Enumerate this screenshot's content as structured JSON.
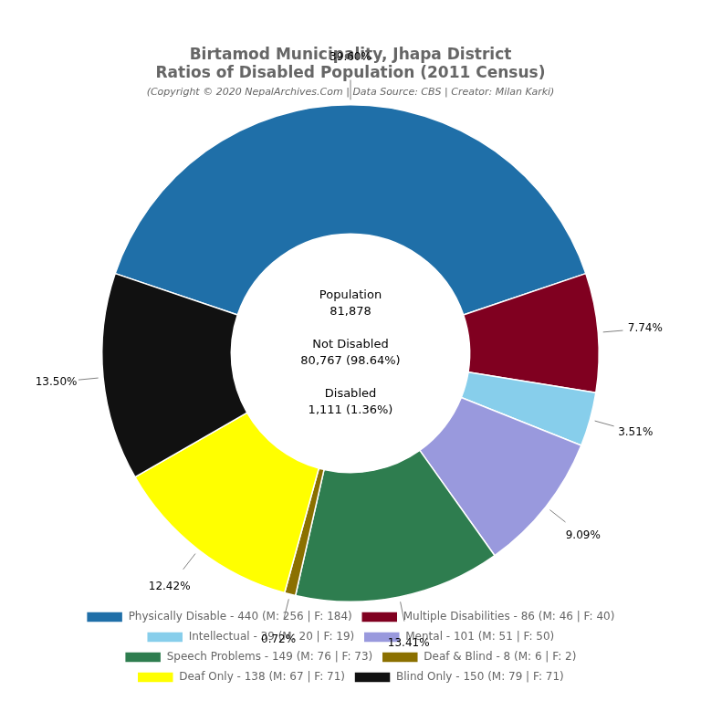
{
  "chart_data": {
    "type": "doughnut",
    "title": [
      "Birtamod Municipality, Jhapa District",
      "Ratios of Disabled Population (2011 Census)"
    ],
    "subtitle": "(Copyright © 2020 NepalArchives.Com | Data Source: CBS | Creator: Milan Karki)",
    "categories": [
      "Physically Disable - 440 (M: 256 | F: 184)",
      "Multiple Disabilities - 86 (M: 46 | F: 40)",
      "Intellectual - 39 (M: 20 | F: 19)",
      "Mental - 101 (M: 51 | F: 50)",
      "Speech Problems - 149 (M: 76 | F: 73)",
      "Deaf & Blind - 8 (M: 6 | F: 2)",
      "Deaf Only - 138 (M: 67 | F: 71)",
      "Blind Only - 150 (M: 79 | F: 71)"
    ],
    "values": [
      39.6,
      7.74,
      3.51,
      9.09,
      13.41,
      0.72,
      12.42,
      13.5
    ],
    "value_labels": [
      "39.60%",
      "7.74%",
      "3.51%",
      "9.09%",
      "13.41%",
      "0.72%",
      "12.42%",
      "13.50%"
    ],
    "colors": [
      "#1f6fa8",
      "#800020",
      "#87ceeb",
      "#9999dd",
      "#2e7d4f",
      "#8B7000",
      "#ffff00",
      "#111111"
    ],
    "data_labels": true,
    "legend": "bottom",
    "annotations": [
      "Population\n81,878\n\nNot Disabled\n80,767 (98.64%)\n\nDisabled\n1,111 (1.36%)"
    ]
  }
}
